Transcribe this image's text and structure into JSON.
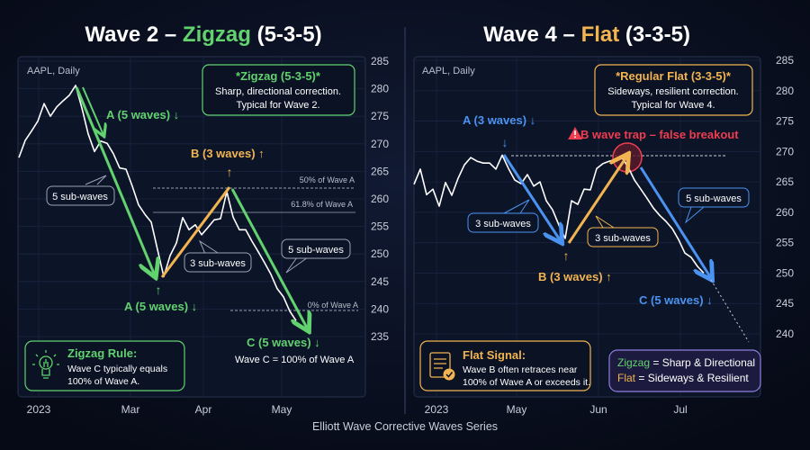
{
  "title": "Elliott Wave Corrective Waves Series",
  "colors": {
    "background": "#080d1c",
    "green": "#62d26f",
    "orange": "#f2b451",
    "blue": "#4b93f0",
    "red": "#ef3d4f",
    "purple": "#8f7fe0",
    "price_line": "#ffffff"
  },
  "left": {
    "heading": {
      "prefix": "Wave 2 – ",
      "highlight": "Zigzag",
      "suffix": " (5-3-5)"
    },
    "ticker": "AAPL, Daily",
    "info_box": {
      "title": "*Zigzag (5-3-5)*",
      "line1": "Sharp, directional correction.",
      "line2": "Typical for Wave 2."
    },
    "labels": {
      "a_top": "A (5 waves) ↓",
      "a_bottom": "A (5 waves) ↓",
      "b": "B (3 waves) ↑",
      "c": "C (5 waves) ↓",
      "c_note": "Wave C = 100% of Wave A",
      "fib_50": "50% of Wave A",
      "fib_618": "61.8% of Wave A",
      "fib_0": "0% of Wave A",
      "callout_a": "5 sub-waves",
      "callout_b": "3 sub-waves",
      "callout_c": "5 sub-waves",
      "arrow_up": "↑"
    },
    "rule_box": {
      "icon": "lightbulb-icon",
      "title": "Zigzag Rule:",
      "line1": "Wave C typically equals",
      "line2": "100% of Wave A."
    }
  },
  "right": {
    "heading": {
      "prefix": "Wave 4 – ",
      "highlight": "Flat",
      "suffix": " (3-3-5)"
    },
    "ticker": "AAPL, Daily",
    "info_box": {
      "title": "*Regular Flat (3-3-5)*",
      "line1": "Sideways, resilient correction.",
      "line2": "Typical for Wave 4."
    },
    "labels": {
      "a": "A (3 waves) ↓",
      "b": "B (3 waves) ↑",
      "c": "C (5 waves) ↓",
      "trap": "B wave trap – false breakout",
      "callout_a": "3 sub-waves",
      "callout_b": "3 sub-waves",
      "callout_c": "5 sub-waves",
      "arrow_down": "↓",
      "arrow_up": "↑"
    },
    "signal_box": {
      "icon": "checklist-icon",
      "title": "Flat Signal:",
      "line1": "Wave B often retraces near",
      "line2": "100% of Wave A or exceeds it."
    },
    "legend_box": {
      "zigzag": "Zigzag",
      "zigzag_desc": " = Sharp & Directional",
      "flat": "Flat",
      "flat_desc": " = Sideways & Resilient"
    }
  },
  "chart_data": [
    {
      "type": "line",
      "title": "Wave 2 – Zigzag (5-3-5)",
      "series": [
        {
          "name": "AAPL, Daily",
          "values": [
            267.5,
            270.6,
            272.3,
            274.1,
            277.3,
            275.0,
            276.7,
            277.8,
            278.8,
            280.6,
            276.5,
            271.8,
            268.6,
            270.5,
            270.1,
            268.2,
            265.6,
            265.4,
            262.3,
            258.9,
            257.2,
            255.8,
            250.8,
            245.9,
            249.7,
            252.0,
            256.6,
            254.4,
            255.3,
            253.5,
            254.8,
            256.2,
            256.4,
            261.3,
            256.7,
            254.4,
            254.4,
            252.3,
            250.4,
            248.4,
            246.3,
            243.7,
            242.2,
            239.6,
            237.9
          ]
        }
      ],
      "x_ticks": [
        "2023",
        "Mar",
        "Apr",
        "May"
      ],
      "y_ticks": [
        285,
        280,
        275,
        270,
        265,
        260,
        255,
        250,
        245,
        240,
        235
      ],
      "ylim": [
        235,
        285
      ],
      "y_axis": "right",
      "grid": true
    },
    {
      "type": "line",
      "title": "Wave 4 – Flat (3-3-5)",
      "series": [
        {
          "name": "AAPL, Daily",
          "values": [
            264.6,
            267.1,
            262.9,
            263.8,
            261.0,
            264.9,
            262.8,
            265.6,
            267.8,
            269.0,
            268.4,
            268.1,
            268.1,
            267.1,
            269.4,
            267.2,
            265.3,
            264.7,
            266.2,
            264.3,
            265.0,
            261.9,
            260.4,
            257.9,
            255.7,
            261.9,
            261.3,
            263.8,
            263.7,
            267.2,
            268.0,
            268.4,
            268.7,
            269.0,
            267.4,
            265.3,
            263.8,
            262.3,
            260.7,
            259.5,
            258.5,
            257.3,
            255.5,
            253.3,
            252.6,
            251.1,
            250.0
          ]
        }
      ],
      "x_ticks": [
        "2023",
        "May",
        "Jun",
        "Jul"
      ],
      "y_ticks": [
        285,
        280,
        275,
        270,
        265,
        260,
        255,
        250,
        245,
        240
      ],
      "ylim": [
        240,
        285
      ],
      "y_axis": "right",
      "grid": true
    }
  ]
}
